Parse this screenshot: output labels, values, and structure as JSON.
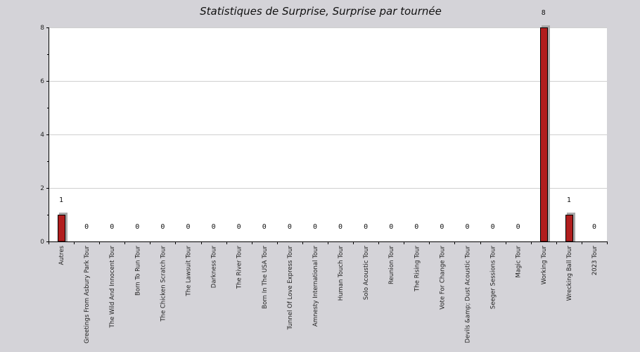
{
  "chart_data": {
    "type": "bar",
    "title": "Statistiques de Surprise, Surprise par tournée",
    "categories": [
      "Autres",
      "Greetings From Asbury Park Tour",
      "The Wild And Innocent Tour",
      "Born To Run Tour",
      "The Chicken Scratch Tour",
      "The Lawsuit Tour",
      "Darkness Tour",
      "The River Tour",
      "Born In The USA Tour",
      "Tunnel Of Love Express Tour",
      "Amnesty International Tour",
      "Human Touch Tour",
      "Solo Acoustic Tour",
      "Reunion Tour",
      "The Rising Tour",
      "Vote For Change Tour",
      "Devils &amp; Dust Acoustic Tour",
      "Seeger Sessions Tour",
      "Magic Tour",
      "Working Tour",
      "Wrecking Ball Tour",
      "2023 Tour"
    ],
    "values": [
      1,
      0,
      0,
      0,
      0,
      0,
      0,
      0,
      0,
      0,
      0,
      0,
      0,
      0,
      0,
      0,
      0,
      0,
      0,
      8,
      1,
      0
    ],
    "value_labels": [
      "1",
      "0",
      "0",
      "0",
      "0",
      "0",
      "0",
      "0",
      "0",
      "0",
      "0",
      "0",
      "0",
      "0",
      "0",
      "0",
      "0",
      "0",
      "0",
      "8",
      "1",
      "0"
    ],
    "xlabel": "",
    "ylabel": "",
    "ylim": [
      0,
      8
    ],
    "yticks": [
      0,
      2,
      4,
      6,
      8
    ],
    "ytick_labels": [
      "0",
      "2",
      "4",
      "6",
      "8"
    ],
    "grid": true,
    "colors": {
      "background": "#d4d3d8",
      "plot_area": "#ffffff",
      "bar": "#b11e1e",
      "bar_shadow": "#a9a9a9",
      "grid": "#cfcfcf",
      "axis": "#000000"
    }
  }
}
